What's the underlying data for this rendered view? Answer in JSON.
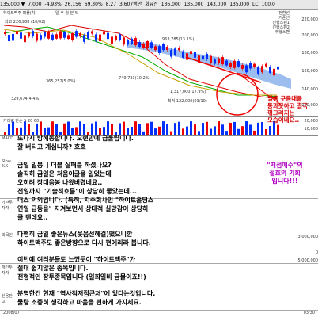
{
  "toolbar": {
    "items": [
      "135,000 ▼",
      "7,000",
      "-4.93%",
      "26,156",
      "69.30%",
      "8.27",
      "3,607백만",
      "회유전",
      "136,000",
      "135,000",
      "143,000",
      "135,000",
      "LC",
      "100.0"
    ]
  },
  "chart": {
    "price_labels": [
      "최고 226,988 (10/02)",
      "365,252(5.0%)",
      "329,674(4.4%)",
      "963,785(13.1%)",
      "749,733(10.2%)",
      "1,317,000(17.9%)",
      "최저 122,000(03/10)"
    ],
    "axis": [
      "220,000",
      "200,000",
      "180,000",
      "160,000",
      "140,000",
      "120,000"
    ],
    "top_right": [
      "전환선",
      "기준선",
      "선행스팬1",
      "선행스팬2",
      "후행스팬"
    ],
    "top_left": [
      "하이트맥주 퍼플(차)",
      "일 주 월 분 틱"
    ]
  },
  "volume": {
    "label": "거래량 단순 5 20 60",
    "axis": [
      "20,000",
      "10,000"
    ]
  },
  "panels": {
    "macd": "MACD",
    "stoch": "Slow %K",
    "investor": "기관투자자",
    "foreign": "외국인",
    "program": "개인투자자",
    "credit": "신용잔고"
  },
  "annotations": {
    "red_circle_note": "일목 구름대를\n통과못하고 결국\n꺾그려지는\n모습이네요..",
    "line1": "또다시 방해동합니다. 오랜만에 급울립니다.",
    "line2": "잘 버티고 계십니까? 흐흐",
    "line3": "금일 일봉니 더블 실패를 하셨나요?",
    "line4": "솔직히 금일은 처음이글을 일었는데",
    "line5": "오히려 장대음봉 나왔버렸네요..",
    "line6": "전일까지 \"기술적흐름\"이 상당히 좋았는데...",
    "line7": "더스 의외입니다. (특히, 지주회사인 \"하이트홀딩스",
    "line8": "연일 급등을\" 지켜보면서 상대적 실망감이 상당히",
    "line9": "클 텐데요..",
    "line10": "다행히 금일 좋은뉴스(웃음선혜걸)떴으니깐",
    "line11": "하이트맥주도 좋은방향으로 다시 편에리라 봅니다.",
    "line12": "이번에 여러분들도 느꼈듯이 \"하이트맥주\"가",
    "line13": "절대 쉽지않은 종목입니다.",
    "line14": "전형적인 장투종목입니다 (일희일비 금물이죠!!)",
    "line15": "분명한건 현재 \"역사적저점근처\"에 있다는것입니다.",
    "line16": "물량 소중히 생각하고 마음을 편하게 가지세요.",
    "side_note": "\"저점매수\"의\n절호의 기회\n입니다!!!"
  },
  "bottom_axis": {
    "left": "2008/07",
    "right": "03/30"
  },
  "right_axis_lower": [
    "3,000,000",
    "0",
    "-5,000,000"
  ]
}
